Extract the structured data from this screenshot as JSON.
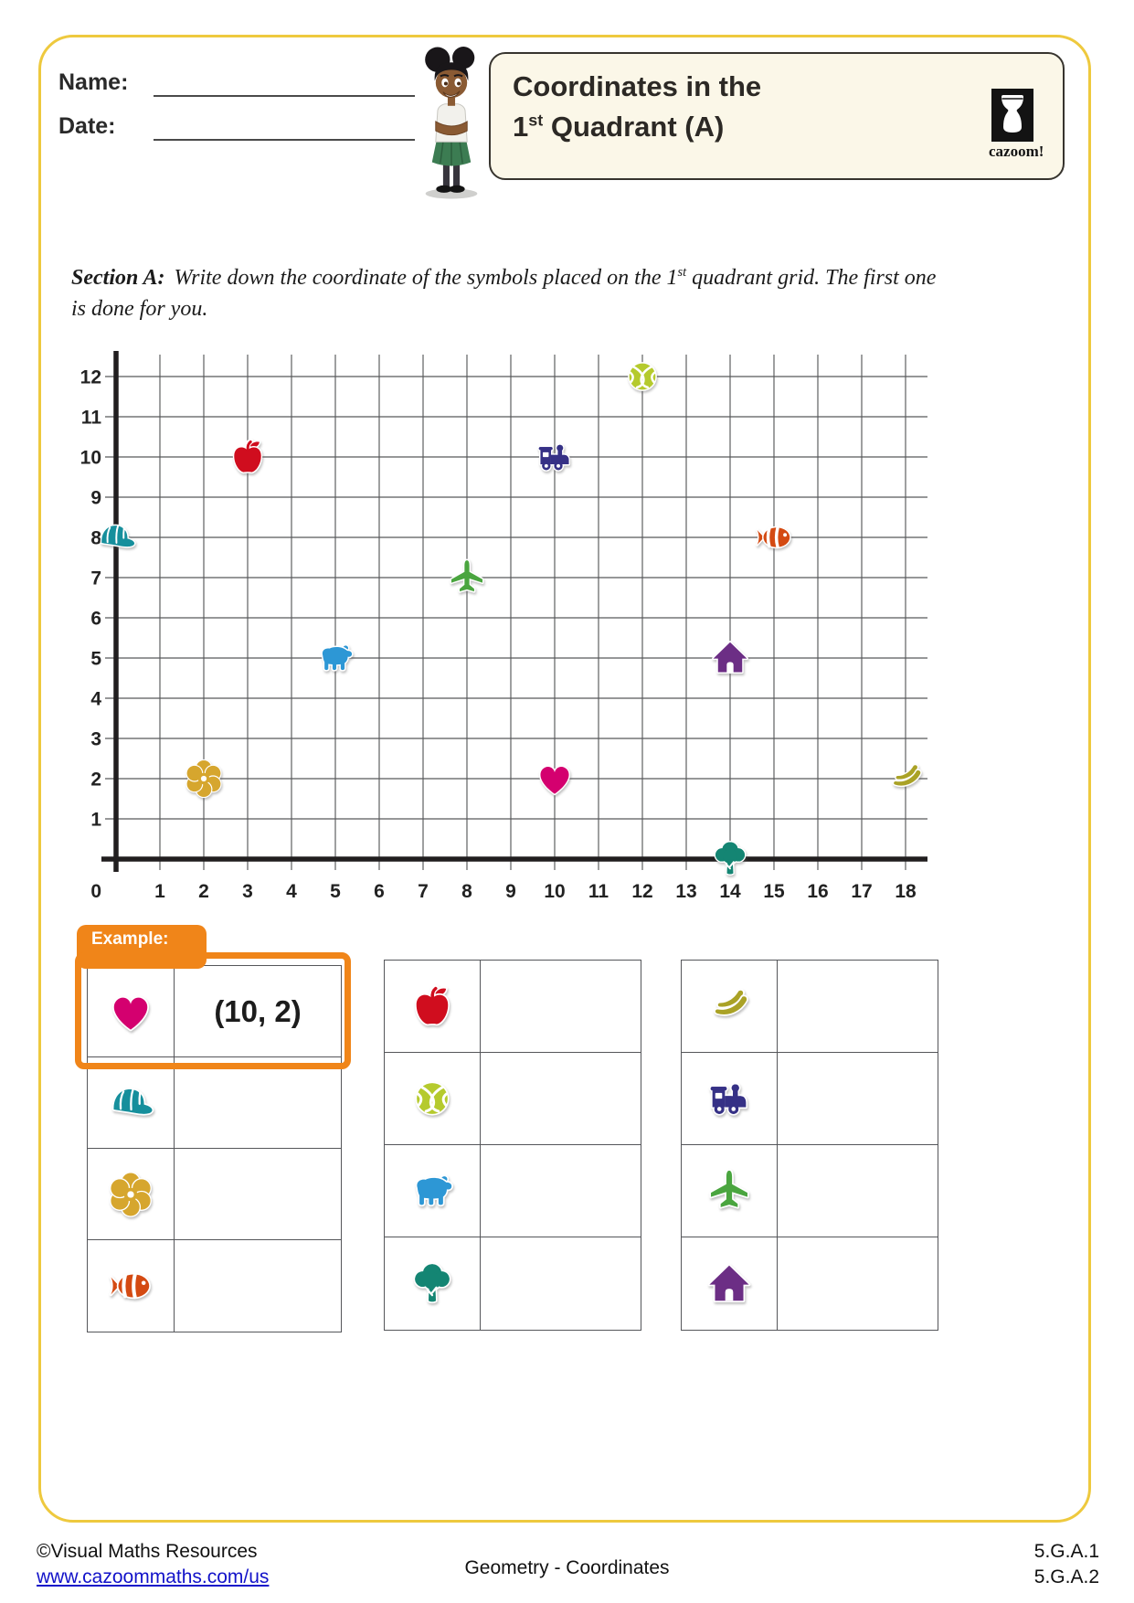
{
  "header": {
    "name_label": "Name:",
    "date_label": "Date:"
  },
  "title": {
    "line1": "Coordinates in the",
    "line2_num": "1",
    "line2_sup": "st",
    "line2_rest": " Quadrant (A)"
  },
  "logo": {
    "brand": "cazoom!"
  },
  "section_a": {
    "label": "Section A:",
    "line1_a": "Write down the coordinate of the symbols placed on the 1",
    "line1_sup": "st",
    "line1_b": " quadrant grid. The first one",
    "line2": "is done for you."
  },
  "chart_data": {
    "type": "scatter",
    "title": "First quadrant coordinate grid with symbols",
    "xlabel": "",
    "ylabel": "",
    "x_range": [
      0,
      18
    ],
    "y_range": [
      0,
      12
    ],
    "grid": true,
    "x_ticks": [
      0,
      1,
      2,
      3,
      4,
      5,
      6,
      7,
      8,
      9,
      10,
      11,
      12,
      13,
      14,
      15,
      16,
      17,
      18
    ],
    "y_ticks": [
      1,
      2,
      3,
      4,
      5,
      6,
      7,
      8,
      9,
      10,
      11,
      12
    ],
    "points": [
      {
        "symbol": "basketball",
        "x": 12,
        "y": 12
      },
      {
        "symbol": "apple",
        "x": 3,
        "y": 10
      },
      {
        "symbol": "train",
        "x": 10,
        "y": 10
      },
      {
        "symbol": "cap",
        "x": 0,
        "y": 8
      },
      {
        "symbol": "fish",
        "x": 15,
        "y": 8
      },
      {
        "symbol": "airplane",
        "x": 8,
        "y": 7
      },
      {
        "symbol": "bear",
        "x": 5,
        "y": 5
      },
      {
        "symbol": "house",
        "x": 14,
        "y": 5
      },
      {
        "symbol": "flower",
        "x": 2,
        "y": 2
      },
      {
        "symbol": "heart",
        "x": 10,
        "y": 2
      },
      {
        "symbol": "banana",
        "x": 18,
        "y": 2
      },
      {
        "symbol": "tree",
        "x": 14,
        "y": 0
      }
    ]
  },
  "symbol_colors": {
    "heart": "#d4006f",
    "cap": "#168f9c",
    "flower": "#d6a62e",
    "fish": "#d44a12",
    "apple": "#d00d1e",
    "basketball": "#b5ca2d",
    "bear": "#2d97d5",
    "tree": "#148573",
    "banana": "#aaa226",
    "train": "#363186",
    "airplane": "#4aa53f",
    "house": "#6c2e85"
  },
  "tables": [
    {
      "example_label": "Example:",
      "rows": [
        {
          "symbol": "heart",
          "answer": "(10, 2)"
        },
        {
          "symbol": "cap",
          "answer": ""
        },
        {
          "symbol": "flower",
          "answer": ""
        },
        {
          "symbol": "fish",
          "answer": ""
        }
      ]
    },
    {
      "rows": [
        {
          "symbol": "apple",
          "answer": ""
        },
        {
          "symbol": "basketball",
          "answer": ""
        },
        {
          "symbol": "bear",
          "answer": ""
        },
        {
          "symbol": "tree",
          "answer": ""
        }
      ]
    },
    {
      "rows": [
        {
          "symbol": "banana",
          "answer": ""
        },
        {
          "symbol": "train",
          "answer": ""
        },
        {
          "symbol": "airplane",
          "answer": ""
        },
        {
          "symbol": "house",
          "answer": ""
        }
      ]
    }
  ],
  "footer": {
    "copyright": "©Visual Maths Resources",
    "url": "www.cazoommaths.com/us",
    "center": "Geometry - Coordinates",
    "code1": "5.G.A.1",
    "code2": "5.G.A.2"
  },
  "colors": {
    "page_border": "#eec93e",
    "accent_orange": "#f08519",
    "title_box_bg": "#fbf7e8",
    "grid_line": "#58595b",
    "axis": "#211e1f",
    "link_blue": "#1212c9"
  }
}
